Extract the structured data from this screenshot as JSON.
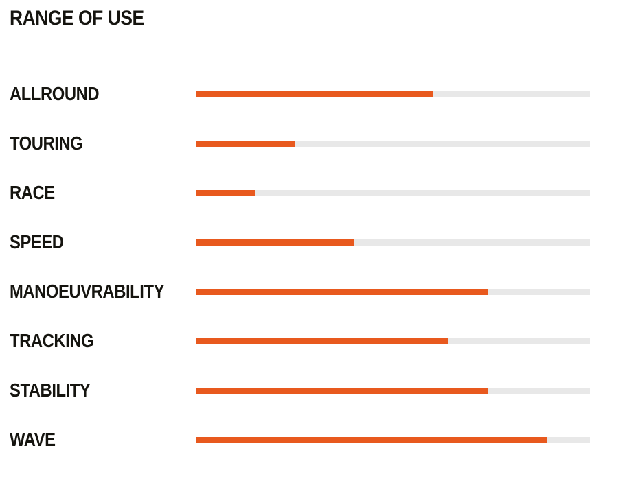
{
  "chart_data": {
    "type": "bar",
    "orientation": "horizontal",
    "title": "RANGE OF USE",
    "categories": [
      "ALLROUND",
      "TOURING",
      "RACE",
      "SPEED",
      "MANOEUVRABILITY",
      "TRACKING",
      "STABILITY",
      "WAVE"
    ],
    "values": [
      60,
      25,
      15,
      40,
      74,
      64,
      74,
      89
    ],
    "xlim": [
      0,
      100
    ],
    "value_unit": "percent of full track",
    "grid": false,
    "legend": false,
    "bar_color": "#E8591E",
    "track_color": "#E8E8E8",
    "text_color": "#15140F",
    "background_color": "#FFFFFF"
  }
}
